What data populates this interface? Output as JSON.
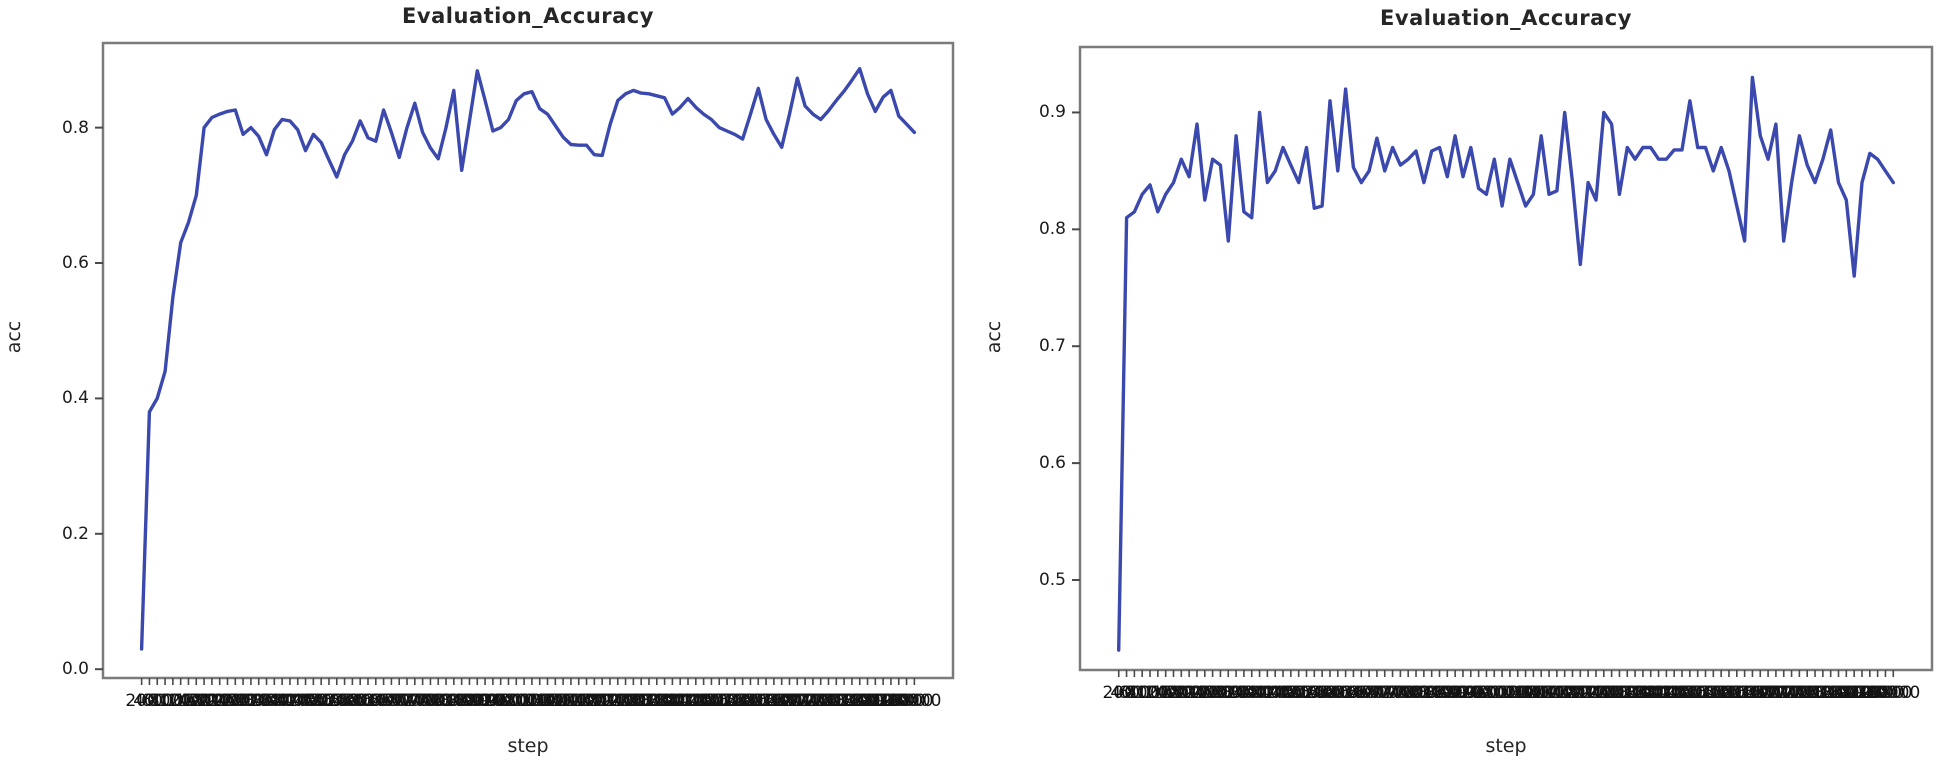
{
  "chart_data": [
    {
      "type": "line",
      "title": "Evaluation_Accuracy",
      "xlabel": "step",
      "ylabel": "acc",
      "legend": "none",
      "grid": false,
      "line_color": "#3b49ae",
      "xlim": [
        -790,
        20990
      ],
      "ylim": [
        -0.013,
        0.925
      ],
      "ytick_values": [
        0.0,
        0.2,
        0.4,
        0.6,
        0.8
      ],
      "ytick_labels": [
        "0.0",
        "0.2",
        "0.4",
        "0.6",
        "0.8"
      ],
      "x": [
        200,
        400,
        600,
        800,
        1000,
        1200,
        1400,
        1600,
        1800,
        2000,
        2200,
        2400,
        2600,
        2800,
        3000,
        3200,
        3400,
        3600,
        3800,
        4000,
        4200,
        4400,
        4600,
        4800,
        5000,
        5200,
        5400,
        5600,
        5800,
        6000,
        6200,
        6400,
        6600,
        6800,
        7000,
        7200,
        7400,
        7600,
        7800,
        8000,
        8200,
        8400,
        8600,
        8800,
        9000,
        9200,
        9400,
        9600,
        9800,
        10000,
        10200,
        10400,
        10600,
        10800,
        11000,
        11200,
        11400,
        11600,
        11800,
        12000,
        12200,
        12400,
        12600,
        12800,
        13000,
        13200,
        13400,
        13600,
        13800,
        14000,
        14200,
        14400,
        14600,
        14800,
        15000,
        15200,
        15400,
        15600,
        15800,
        16000,
        16200,
        16400,
        16600,
        16800,
        17000,
        17200,
        17400,
        17600,
        17800,
        18000,
        18200,
        18400,
        18600,
        18800,
        19000,
        19200,
        19400,
        19600,
        19800,
        20000
      ],
      "values": [
        0.03,
        0.38,
        0.4,
        0.44,
        0.55,
        0.63,
        0.66,
        0.7,
        0.8,
        0.815,
        0.82,
        0.824,
        0.826,
        0.79,
        0.8,
        0.787,
        0.76,
        0.797,
        0.812,
        0.81,
        0.797,
        0.766,
        0.79,
        0.778,
        0.752,
        0.727,
        0.76,
        0.78,
        0.81,
        0.785,
        0.78,
        0.826,
        0.793,
        0.756,
        0.8,
        0.836,
        0.793,
        0.77,
        0.754,
        0.8,
        0.855,
        0.737,
        0.81,
        0.884,
        0.84,
        0.795,
        0.8,
        0.812,
        0.84,
        0.85,
        0.853,
        0.828,
        0.82,
        0.803,
        0.786,
        0.775,
        0.774,
        0.774,
        0.76,
        0.759,
        0.804,
        0.84,
        0.85,
        0.855,
        0.851,
        0.85,
        0.847,
        0.844,
        0.82,
        0.83,
        0.843,
        0.83,
        0.82,
        0.812,
        0.8,
        0.795,
        0.79,
        0.783,
        0.82,
        0.858,
        0.812,
        0.79,
        0.771,
        0.82,
        0.873,
        0.832,
        0.82,
        0.812,
        0.825,
        0.84,
        0.854,
        0.87,
        0.887,
        0.85,
        0.824,
        0.845,
        0.855,
        0.817,
        0.805,
        0.793
      ]
    },
    {
      "type": "line",
      "title": "Evaluation_Accuracy",
      "xlabel": "step",
      "ylabel": "acc",
      "legend": "none",
      "grid": false,
      "line_color": "#3b49ae",
      "xlim": [
        -790,
        20990
      ],
      "ylim": [
        0.423,
        0.956
      ],
      "ytick_values": [
        0.5,
        0.6,
        0.7,
        0.8,
        0.9
      ],
      "ytick_labels": [
        "0.5",
        "0.6",
        "0.7",
        "0.8",
        "0.9"
      ],
      "x": [
        200,
        400,
        600,
        800,
        1000,
        1200,
        1400,
        1600,
        1800,
        2000,
        2200,
        2400,
        2600,
        2800,
        3000,
        3200,
        3400,
        3600,
        3800,
        4000,
        4200,
        4400,
        4600,
        4800,
        5000,
        5200,
        5400,
        5600,
        5800,
        6000,
        6200,
        6400,
        6600,
        6800,
        7000,
        7200,
        7400,
        7600,
        7800,
        8000,
        8200,
        8400,
        8600,
        8800,
        9000,
        9200,
        9400,
        9600,
        9800,
        10000,
        10200,
        10400,
        10600,
        10800,
        11000,
        11200,
        11400,
        11600,
        11800,
        12000,
        12200,
        12400,
        12600,
        12800,
        13000,
        13200,
        13400,
        13600,
        13800,
        14000,
        14200,
        14400,
        14600,
        14800,
        15000,
        15200,
        15400,
        15600,
        15800,
        16000,
        16200,
        16400,
        16600,
        16800,
        17000,
        17200,
        17400,
        17600,
        17800,
        18000,
        18200,
        18400,
        18600,
        18800,
        19000,
        19200,
        19400,
        19600,
        19800,
        20000
      ],
      "values": [
        0.44,
        0.81,
        0.815,
        0.83,
        0.838,
        0.815,
        0.83,
        0.84,
        0.86,
        0.845,
        0.89,
        0.825,
        0.86,
        0.855,
        0.79,
        0.88,
        0.815,
        0.81,
        0.9,
        0.84,
        0.85,
        0.87,
        0.855,
        0.84,
        0.87,
        0.818,
        0.82,
        0.91,
        0.85,
        0.92,
        0.853,
        0.84,
        0.85,
        0.878,
        0.85,
        0.87,
        0.855,
        0.86,
        0.867,
        0.84,
        0.867,
        0.87,
        0.845,
        0.88,
        0.845,
        0.87,
        0.835,
        0.83,
        0.86,
        0.82,
        0.86,
        0.84,
        0.82,
        0.83,
        0.88,
        0.83,
        0.833,
        0.9,
        0.84,
        0.77,
        0.84,
        0.825,
        0.9,
        0.89,
        0.83,
        0.87,
        0.86,
        0.87,
        0.87,
        0.86,
        0.86,
        0.868,
        0.868,
        0.91,
        0.87,
        0.87,
        0.85,
        0.87,
        0.85,
        0.82,
        0.79,
        0.93,
        0.88,
        0.86,
        0.89,
        0.79,
        0.84,
        0.88,
        0.855,
        0.84,
        0.86,
        0.885,
        0.84,
        0.825,
        0.76,
        0.84,
        0.865,
        0.86,
        0.85,
        0.84
      ]
    }
  ]
}
